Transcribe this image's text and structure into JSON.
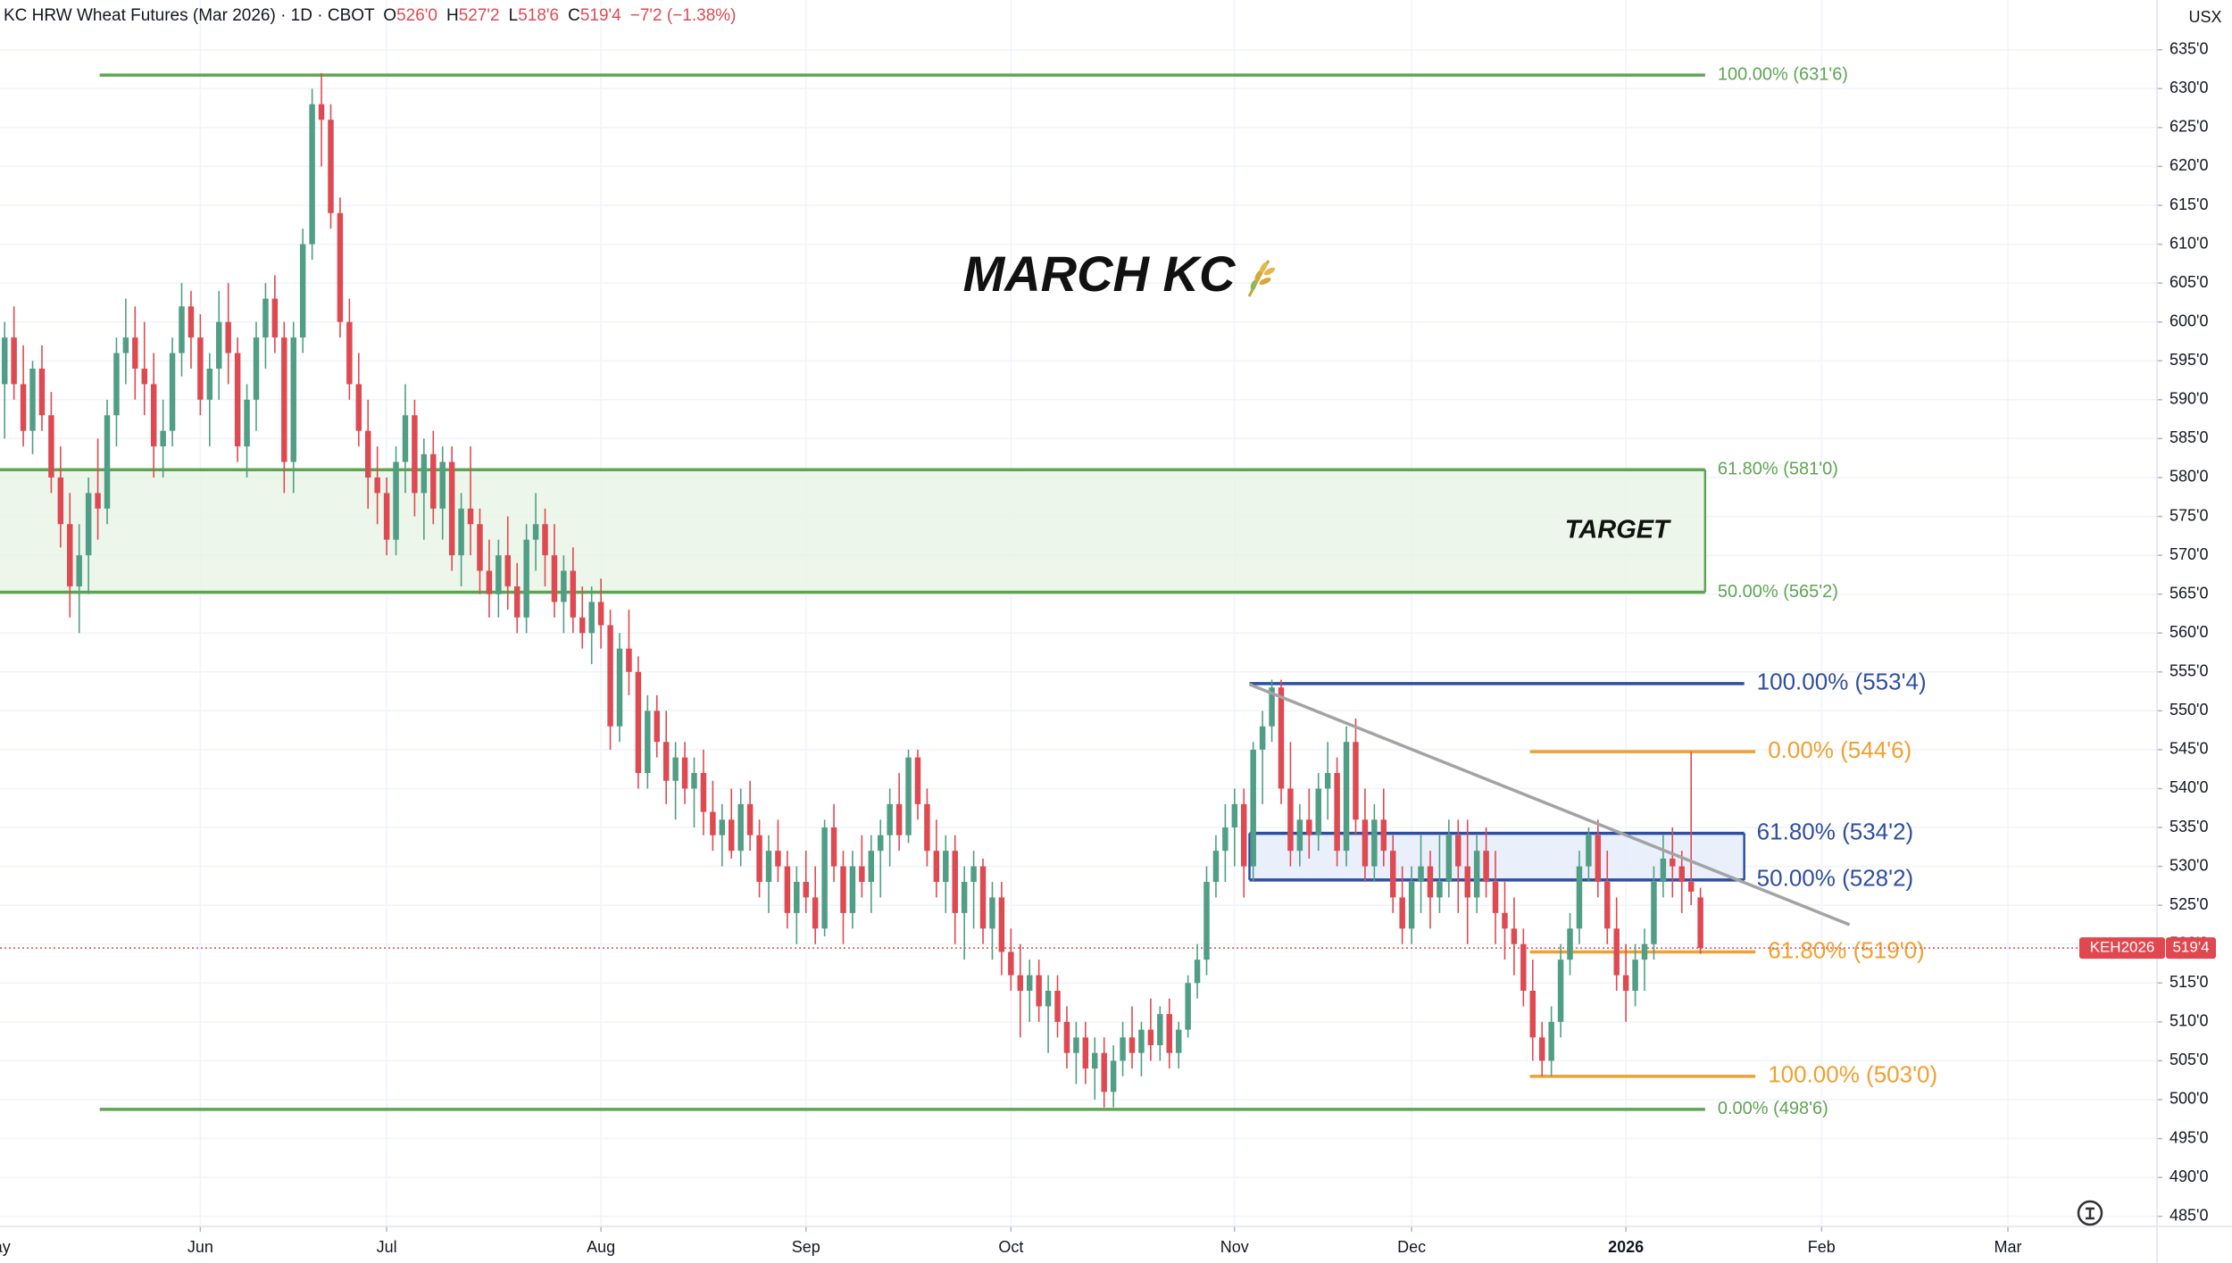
{
  "chart_data": {
    "type": "candlestick",
    "title": "MARCH KC",
    "header": {
      "title": "KC HRW Wheat Futures (Mar 2026) · 1D · CBOT",
      "fields": [
        {
          "key": "O",
          "value": "526'0"
        },
        {
          "key": "H",
          "value": "527'2"
        },
        {
          "key": "L",
          "value": "518'6"
        },
        {
          "key": "C",
          "value": "519'4"
        }
      ],
      "change": "−7'2 (−1.38%)"
    },
    "currency": "USX",
    "up_color": "#509e85",
    "down_color": "#de4a52",
    "grid": true,
    "xlim": [
      -0.5,
      231
    ],
    "ylim": [
      483.7,
      641.4
    ],
    "xticks": [
      {
        "value": -1,
        "label": "May"
      },
      {
        "value": 21,
        "label": "Jun"
      },
      {
        "value": 41,
        "label": "Jul"
      },
      {
        "value": 64,
        "label": "Aug"
      },
      {
        "value": 86,
        "label": "Sep"
      },
      {
        "value": 108,
        "label": "Oct"
      },
      {
        "value": 132,
        "label": "Nov"
      },
      {
        "value": 151,
        "label": "Dec"
      },
      {
        "value": 174,
        "label": "2026"
      },
      {
        "value": 195,
        "label": "Feb"
      },
      {
        "value": 215,
        "label": "Mar"
      }
    ],
    "yticks": [
      {
        "value": 485,
        "label": "485'0"
      },
      {
        "value": 490,
        "label": "490'0"
      },
      {
        "value": 495,
        "label": "495'0"
      },
      {
        "value": 500,
        "label": "500'0"
      },
      {
        "value": 505,
        "label": "505'0"
      },
      {
        "value": 510,
        "label": "510'0"
      },
      {
        "value": 515,
        "label": "515'0"
      },
      {
        "value": 520,
        "label": "520'0"
      },
      {
        "value": 525,
        "label": "525'0"
      },
      {
        "value": 530,
        "label": "530'0"
      },
      {
        "value": 535,
        "label": "535'0"
      },
      {
        "value": 540,
        "label": "540'0"
      },
      {
        "value": 545,
        "label": "545'0"
      },
      {
        "value": 550,
        "label": "550'0"
      },
      {
        "value": 555,
        "label": "555'0"
      },
      {
        "value": 560,
        "label": "560'0"
      },
      {
        "value": 565,
        "label": "565'0"
      },
      {
        "value": 570,
        "label": "570'0"
      },
      {
        "value": 575,
        "label": "575'0"
      },
      {
        "value": 580,
        "label": "580'0"
      },
      {
        "value": 585,
        "label": "585'0"
      },
      {
        "value": 590,
        "label": "590'0"
      },
      {
        "value": 595,
        "label": "595'0"
      },
      {
        "value": 600,
        "label": "600'0"
      },
      {
        "value": 605,
        "label": "605'0"
      },
      {
        "value": 610,
        "label": "610'0"
      },
      {
        "value": 615,
        "label": "615'0"
      },
      {
        "value": 620,
        "label": "620'0"
      },
      {
        "value": 625,
        "label": "625'0"
      },
      {
        "value": 630,
        "label": "630'0"
      },
      {
        "value": 635,
        "label": "635'0"
      }
    ],
    "candles": [
      [
        592,
        600,
        585,
        598
      ],
      [
        598,
        602,
        590,
        592
      ],
      [
        592,
        597,
        584,
        586
      ],
      [
        586,
        595,
        583,
        594
      ],
      [
        594,
        597,
        586,
        588
      ],
      [
        588,
        591,
        578,
        580
      ],
      [
        580,
        584,
        571,
        574
      ],
      [
        574,
        578,
        562,
        566
      ],
      [
        566,
        574,
        560,
        570
      ],
      [
        570,
        580,
        565,
        578
      ],
      [
        578,
        585,
        572,
        576
      ],
      [
        576,
        590,
        574,
        588
      ],
      [
        588,
        598,
        584,
        596
      ],
      [
        596,
        603,
        592,
        598
      ],
      [
        598,
        602,
        590,
        594
      ],
      [
        594,
        600,
        588,
        592
      ],
      [
        592,
        596,
        580,
        584
      ],
      [
        584,
        590,
        580,
        586
      ],
      [
        586,
        598,
        584,
        596
      ],
      [
        596,
        605,
        593,
        602
      ],
      [
        602,
        604,
        594,
        598
      ],
      [
        598,
        601,
        588,
        590
      ],
      [
        590,
        596,
        584,
        594
      ],
      [
        594,
        604,
        590,
        600
      ],
      [
        600,
        605,
        592,
        596
      ],
      [
        596,
        598,
        582,
        584
      ],
      [
        584,
        592,
        580,
        590
      ],
      [
        590,
        600,
        586,
        598
      ],
      [
        598,
        605,
        594,
        603
      ],
      [
        603,
        606,
        596,
        598
      ],
      [
        598,
        600,
        578,
        582
      ],
      [
        582,
        600,
        578,
        598
      ],
      [
        598,
        612,
        596,
        610
      ],
      [
        610,
        630,
        608,
        628
      ],
      [
        628,
        632,
        620,
        626
      ],
      [
        626,
        628,
        612,
        614
      ],
      [
        614,
        616,
        598,
        600
      ],
      [
        600,
        603,
        590,
        592
      ],
      [
        592,
        596,
        584,
        586
      ],
      [
        586,
        590,
        576,
        580
      ],
      [
        580,
        584,
        574,
        578
      ],
      [
        578,
        580,
        570,
        572
      ],
      [
        572,
        584,
        570,
        582
      ],
      [
        582,
        592,
        578,
        588
      ],
      [
        588,
        590,
        575,
        578
      ],
      [
        578,
        585,
        572,
        583
      ],
      [
        583,
        586,
        574,
        576
      ],
      [
        576,
        584,
        572,
        582
      ],
      [
        582,
        584,
        568,
        570
      ],
      [
        570,
        578,
        566,
        576
      ],
      [
        576,
        584,
        570,
        574
      ],
      [
        574,
        576,
        565,
        568
      ],
      [
        568,
        572,
        562,
        565
      ],
      [
        565,
        572,
        562,
        570
      ],
      [
        570,
        575,
        563,
        566
      ],
      [
        566,
        569,
        560,
        562
      ],
      [
        562,
        574,
        560,
        572
      ],
      [
        572,
        578,
        568,
        574
      ],
      [
        574,
        576,
        566,
        570
      ],
      [
        570,
        574,
        562,
        564
      ],
      [
        564,
        570,
        560,
        568
      ],
      [
        568,
        571,
        560,
        562
      ],
      [
        562,
        566,
        558,
        560
      ],
      [
        560,
        566,
        556,
        564
      ],
      [
        564,
        567,
        558,
        561
      ],
      [
        561,
        563,
        545,
        548
      ],
      [
        548,
        560,
        546,
        558
      ],
      [
        558,
        563,
        552,
        555
      ],
      [
        555,
        557,
        540,
        542
      ],
      [
        542,
        552,
        540,
        550
      ],
      [
        550,
        552,
        544,
        546
      ],
      [
        546,
        550,
        538,
        541
      ],
      [
        541,
        546,
        536,
        544
      ],
      [
        544,
        546,
        538,
        540
      ],
      [
        540,
        544,
        535,
        542
      ],
      [
        542,
        545,
        534,
        537
      ],
      [
        537,
        541,
        532,
        534
      ],
      [
        534,
        538,
        530,
        536
      ],
      [
        536,
        540,
        531,
        532
      ],
      [
        532,
        540,
        530,
        538
      ],
      [
        538,
        541,
        532,
        534
      ],
      [
        534,
        536,
        526,
        528
      ],
      [
        528,
        534,
        524,
        532
      ],
      [
        532,
        536,
        528,
        530
      ],
      [
        530,
        532,
        522,
        524
      ],
      [
        524,
        530,
        520,
        528
      ],
      [
        528,
        532,
        524,
        526
      ],
      [
        526,
        530,
        520,
        522
      ],
      [
        522,
        536,
        521,
        535
      ],
      [
        535,
        538,
        528,
        530
      ],
      [
        530,
        532,
        520,
        524
      ],
      [
        524,
        532,
        522,
        530
      ],
      [
        530,
        534,
        526,
        528
      ],
      [
        528,
        534,
        524,
        532
      ],
      [
        532,
        536,
        526,
        534
      ],
      [
        534,
        540,
        530,
        538
      ],
      [
        538,
        542,
        532,
        534
      ],
      [
        534,
        545,
        533,
        544
      ],
      [
        544,
        545,
        536,
        538
      ],
      [
        538,
        540,
        530,
        532
      ],
      [
        532,
        536,
        526,
        528
      ],
      [
        528,
        534,
        524,
        532
      ],
      [
        532,
        534,
        520,
        524
      ],
      [
        524,
        530,
        518,
        528
      ],
      [
        528,
        532,
        522,
        530
      ],
      [
        530,
        531,
        520,
        522
      ],
      [
        522,
        528,
        518,
        526
      ],
      [
        526,
        528,
        516,
        519
      ],
      [
        519,
        522,
        514,
        516
      ],
      [
        516,
        520,
        508,
        514
      ],
      [
        514,
        518,
        510,
        516
      ],
      [
        516,
        518,
        510,
        512
      ],
      [
        512,
        516,
        506,
        514
      ],
      [
        514,
        516,
        508,
        510
      ],
      [
        510,
        512,
        504,
        506
      ],
      [
        506,
        510,
        502,
        508
      ],
      [
        508,
        510,
        502,
        504
      ],
      [
        504,
        508,
        500,
        506
      ],
      [
        506,
        508,
        499,
        501
      ],
      [
        501,
        507,
        499,
        505
      ],
      [
        505,
        510,
        503,
        508
      ],
      [
        508,
        512,
        504,
        506
      ],
      [
        506,
        510,
        503,
        509
      ],
      [
        509,
        513,
        505,
        507
      ],
      [
        507,
        512,
        505,
        511
      ],
      [
        511,
        513,
        504,
        506
      ],
      [
        506,
        510,
        504,
        509
      ],
      [
        509,
        516,
        508,
        515
      ],
      [
        515,
        520,
        513,
        518
      ],
      [
        518,
        530,
        516,
        528
      ],
      [
        528,
        534,
        526,
        532
      ],
      [
        532,
        538,
        528,
        535
      ],
      [
        535,
        540,
        530,
        538
      ],
      [
        538,
        540,
        526,
        530
      ],
      [
        530,
        546,
        528,
        545
      ],
      [
        545,
        550,
        538,
        548
      ],
      [
        548,
        554,
        546,
        553
      ],
      [
        553,
        554,
        538,
        540
      ],
      [
        540,
        546,
        530,
        532
      ],
      [
        532,
        538,
        530,
        536
      ],
      [
        536,
        540,
        531,
        534
      ],
      [
        534,
        542,
        532,
        540
      ],
      [
        540,
        546,
        536,
        542
      ],
      [
        542,
        544,
        530,
        532
      ],
      [
        532,
        548,
        530,
        546
      ],
      [
        546,
        549,
        534,
        536
      ],
      [
        536,
        540,
        528,
        530
      ],
      [
        530,
        538,
        528,
        536
      ],
      [
        536,
        540,
        530,
        532
      ],
      [
        532,
        534,
        524,
        526
      ],
      [
        526,
        530,
        520,
        522
      ],
      [
        522,
        530,
        520,
        528
      ],
      [
        528,
        534,
        524,
        530
      ],
      [
        530,
        532,
        522,
        526
      ],
      [
        526,
        534,
        524,
        528
      ],
      [
        528,
        536,
        526,
        534
      ],
      [
        534,
        536,
        524,
        530
      ],
      [
        530,
        536,
        520,
        526
      ],
      [
        526,
        534,
        524,
        532
      ],
      [
        532,
        535,
        526,
        528
      ],
      [
        528,
        532,
        520,
        524
      ],
      [
        524,
        528,
        518,
        522
      ],
      [
        522,
        526,
        516,
        520
      ],
      [
        520,
        522,
        512,
        514
      ],
      [
        514,
        518,
        505,
        508
      ],
      [
        508,
        510,
        503,
        505
      ],
      [
        505,
        512,
        503,
        510
      ],
      [
        510,
        520,
        508,
        518
      ],
      [
        518,
        524,
        516,
        522
      ],
      [
        522,
        532,
        520,
        530
      ],
      [
        530,
        535,
        528,
        534
      ],
      [
        534,
        536,
        526,
        528
      ],
      [
        528,
        532,
        520,
        522
      ],
      [
        522,
        526,
        514,
        516
      ],
      [
        516,
        520,
        510,
        514
      ],
      [
        514,
        520,
        512,
        518
      ],
      [
        518,
        522,
        514,
        520
      ],
      [
        520,
        530,
        518,
        528
      ],
      [
        528,
        534,
        526,
        531
      ],
      [
        531,
        535,
        526,
        530
      ],
      [
        530,
        532,
        524,
        528
      ],
      [
        528,
        544.75,
        525,
        526.75
      ],
      [
        526,
        527.25,
        518.75,
        519.5
      ]
    ],
    "levels": [
      {
        "value": 631.75,
        "label": "100.00% (631'6)",
        "color": "#5ea552",
        "x0": 10.2,
        "x1": 182.5,
        "size": 20
      },
      {
        "value": 498.75,
        "label": "0.00% (498'6)",
        "color": "#5ea552",
        "x0": 10.2,
        "x1": 182.5,
        "size": 20
      },
      {
        "value": 553.5,
        "label": "100.00% (553'4)",
        "color": "#2f4ea0",
        "x0": 133.6,
        "x1": 186.7,
        "size": 26
      },
      {
        "value": 544.75,
        "label": "0.00% (544'6)",
        "color": "#f0a030",
        "x0": 163.7,
        "x1": 187.9,
        "size": 26
      },
      {
        "value": 519,
        "label": "61.80% (519'0)",
        "color": "#f0a030",
        "x0": 163.7,
        "x1": 187.9,
        "size": 26
      },
      {
        "value": 503,
        "label": "100.00% (503'0)",
        "color": "#f0a030",
        "x0": 163.7,
        "x1": 187.9,
        "size": 26
      }
    ],
    "zones": [
      {
        "label": "TARGET",
        "color": "#5ea552",
        "fill": "#e9f5e6",
        "x0": -0.5,
        "x1": 182.5,
        "size": 20,
        "top": {
          "value": 581,
          "label": "61.80% (581'0)"
        },
        "bottom": {
          "value": 565.25,
          "label": "50.00% (565'2)"
        }
      },
      {
        "color": "#2f4ea0",
        "fill": "#e6ecfb",
        "x0": 133.6,
        "x1": 186.7,
        "size": 26,
        "top": {
          "value": 534.25,
          "label": "61.80% (534'2)"
        },
        "bottom": {
          "value": 528.25,
          "label": "50.00% (528'2)"
        }
      }
    ],
    "trendline": {
      "color": "#a3a3a3",
      "points": [
        [
          133.6,
          553.4
        ],
        [
          198,
          522.5
        ]
      ]
    },
    "last": {
      "symbol": "KEH2026",
      "value": 519.5,
      "label": "519'4",
      "color": "#e0474f"
    }
  }
}
